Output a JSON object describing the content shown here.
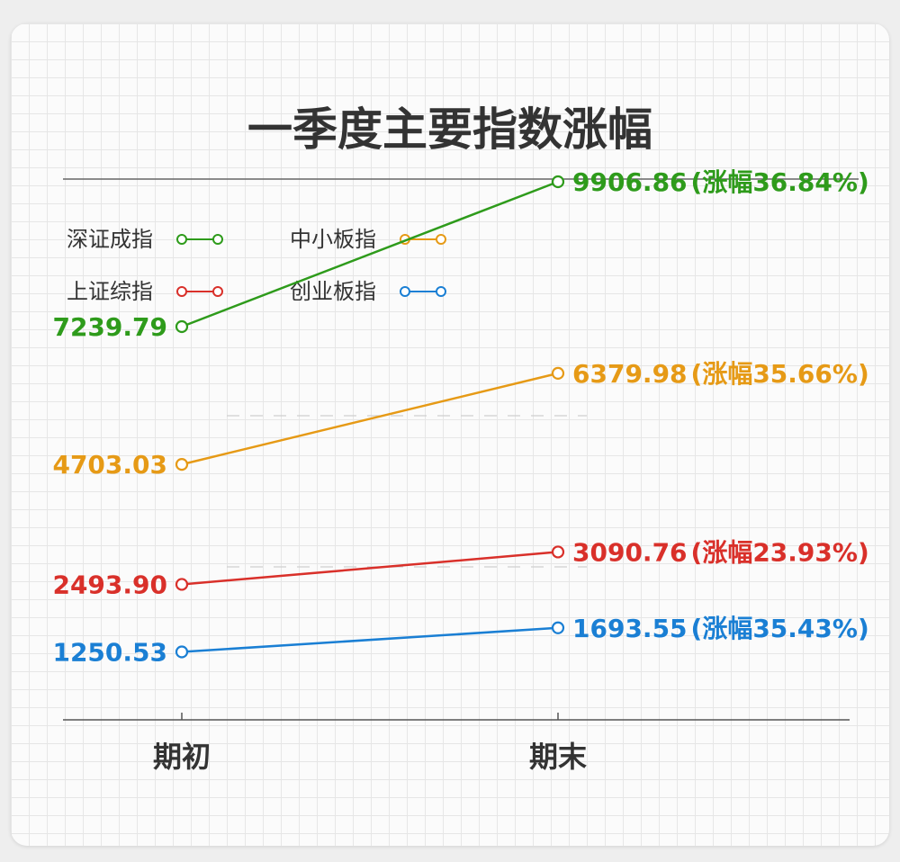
{
  "chart_data": {
    "type": "line",
    "title": "一季度主要指数涨幅",
    "categories": [
      "期初",
      "期末"
    ],
    "series": [
      {
        "name": "深证成指",
        "values": [
          7239.79,
          9906.86
        ],
        "end_label": "9906.86",
        "change_label": "(涨幅36.84%)",
        "color": "#2e9b1b",
        "legend_icon": "line-with-circle-markers"
      },
      {
        "name": "中小板指",
        "values": [
          4703.03,
          6379.98
        ],
        "end_label": "6379.98",
        "change_label": "(涨幅35.66%)",
        "color": "#e69a16",
        "legend_icon": "line-with-circle-markers"
      },
      {
        "name": "上证综指",
        "values": [
          2493.9,
          3090.76
        ],
        "end_label": "3090.76",
        "change_label": "(涨幅23.93%)",
        "color": "#d9302a",
        "legend_icon": "line-with-circle-markers"
      },
      {
        "name": "创业板指",
        "values": [
          1250.53,
          1693.55
        ],
        "end_label": "1693.55",
        "change_label": "(涨幅35.43%)",
        "color": "#1a7fd4",
        "legend_icon": "line-with-circle-markers"
      }
    ],
    "start_labels": [
      "7239.79",
      "4703.03",
      "2493.90",
      "1250.53"
    ],
    "ylim": [
      0,
      11000
    ],
    "grid": true,
    "legend_position": "top-left",
    "xlabel": "",
    "ylabel": ""
  }
}
